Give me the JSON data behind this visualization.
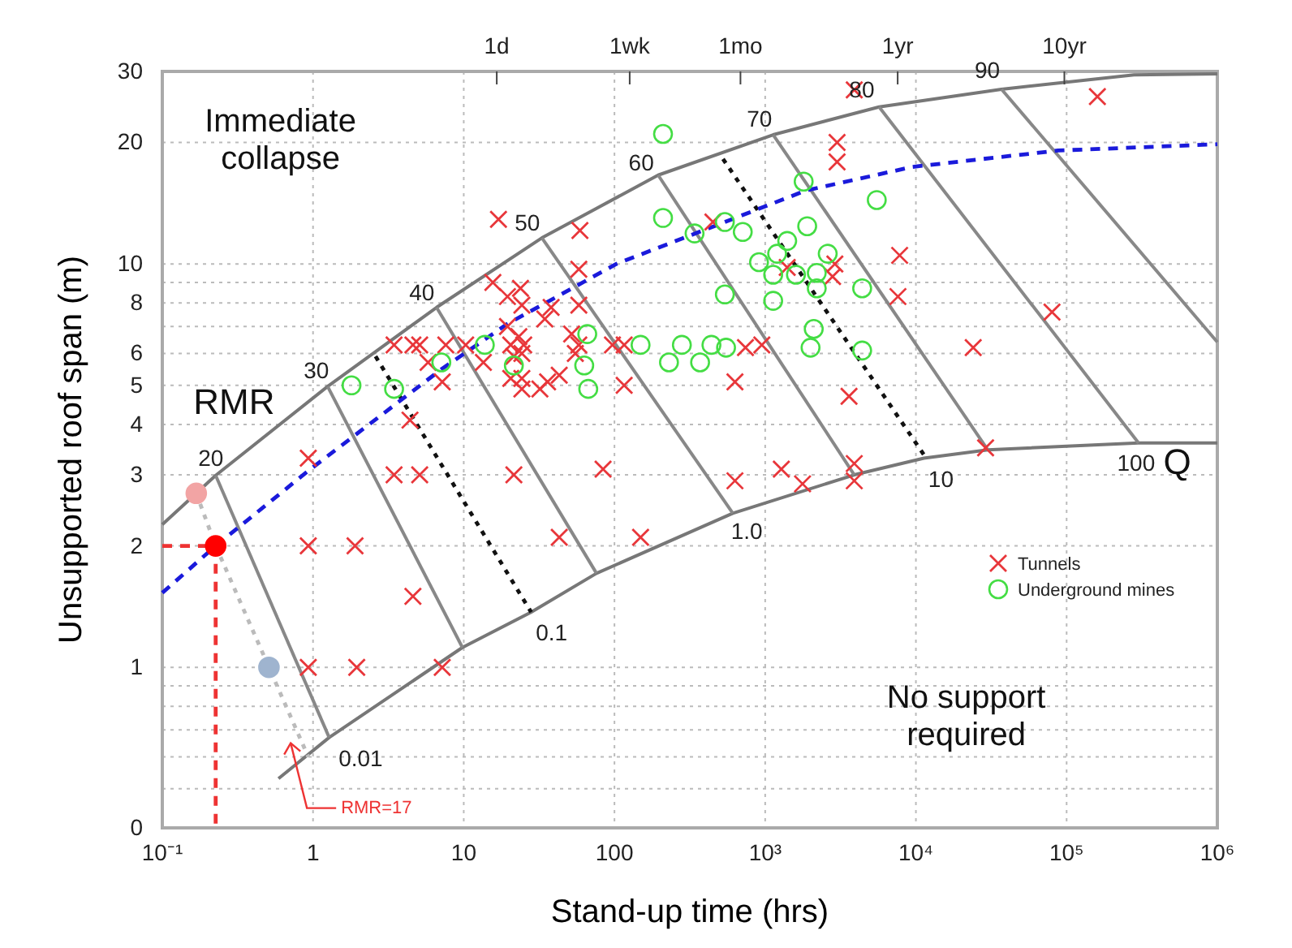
{
  "chart_data": {
    "type": "scatter",
    "xlabel": "Stand-up time (hrs)",
    "ylabel": "Unsupported roof span (m)",
    "log": "xy",
    "grid": true,
    "legend": "right",
    "xlim": [
      0.1,
      1000000
    ],
    "ylim": [
      0.4,
      30
    ],
    "xticks": [
      {
        "value": 0.1,
        "label": "10⁻¹"
      },
      1,
      10,
      100,
      {
        "value": 1000,
        "label": "10³"
      },
      {
        "value": 10000,
        "label": "10⁴"
      },
      {
        "value": 100000,
        "label": "10⁵"
      },
      {
        "value": 1000000,
        "label": "10⁶"
      }
    ],
    "yticks": [
      {
        "value": 0.4,
        "label": "0"
      },
      {
        "value": 0.5,
        "label": null
      },
      {
        "value": 0.6,
        "label": null
      },
      {
        "value": 0.7,
        "label": null
      },
      {
        "value": 0.8,
        "label": null
      },
      {
        "value": 0.9,
        "label": null
      },
      1,
      2,
      3,
      4,
      5,
      6,
      {
        "value": 7,
        "label": null
      },
      8,
      {
        "value": 9,
        "label": null
      },
      10,
      20,
      30
    ],
    "annotations": [
      "Immediate collapse",
      "No support required",
      "RMR",
      "Q",
      "20",
      "30",
      "40",
      "50",
      "60",
      "70",
      "80",
      "90",
      "0.01",
      "0.1",
      "1.0",
      "10",
      "100",
      "RMR=17",
      "1d",
      "1wk",
      "1mo",
      "1yr",
      "10yr"
    ],
    "series": [
      {
        "type": "line",
        "color": "#777777",
        "line_style": "solid",
        "x": [
          0.1,
          0.226,
          1.25,
          6.6,
          33,
          195,
          1130,
          5700,
          37000,
          280000,
          1000000
        ],
        "values": [
          2.26,
          2.99,
          4.97,
          7.8,
          11.6,
          16.6,
          20.9,
          24.5,
          27.1,
          29.4,
          29.6
        ]
      },
      {
        "type": "line",
        "color": "#777777",
        "line_style": "solid",
        "x": [
          0.59,
          1.28,
          9.8,
          28,
          76,
          610,
          3900,
          11300,
          30000,
          300000,
          1000000
        ],
        "values": [
          0.53,
          0.67,
          1.12,
          1.37,
          1.71,
          2.41,
          3.0,
          3.3,
          3.46,
          3.6,
          3.6
        ]
      },
      {
        "type": "line",
        "color": "#888888",
        "line_style": "solid",
        "x": [
          0.226,
          1.28
        ],
        "values": [
          2.99,
          0.67
        ]
      },
      {
        "type": "line",
        "color": "#888888",
        "line_style": "solid",
        "x": [
          1.25,
          9.8
        ],
        "values": [
          4.97,
          1.12
        ]
      },
      {
        "type": "line",
        "color": "#888888",
        "line_style": "solid",
        "x": [
          6.6,
          76
        ],
        "values": [
          7.8,
          1.71
        ]
      },
      {
        "type": "line",
        "color": "#888888",
        "line_style": "solid",
        "x": [
          33,
          610
        ],
        "values": [
          11.6,
          2.41
        ]
      },
      {
        "type": "line",
        "color": "#888888",
        "line_style": "solid",
        "x": [
          195,
          3900
        ],
        "values": [
          16.6,
          3.0
        ]
      },
      {
        "type": "line",
        "color": "#888888",
        "line_style": "solid",
        "x": [
          1130,
          30000
        ],
        "values": [
          20.9,
          3.46
        ]
      },
      {
        "type": "line",
        "color": "#888888",
        "line_style": "solid",
        "x": [
          5700,
          300000
        ],
        "values": [
          24.5,
          3.6
        ]
      },
      {
        "type": "line",
        "color": "#888888",
        "line_style": "solid",
        "x": [
          37000,
          1000000
        ],
        "values": [
          27.1,
          6.4
        ]
      },
      {
        "type": "line",
        "color": "#111111",
        "line_style": "dotted",
        "x": [
          2.6,
          28
        ],
        "values": [
          5.9,
          1.37
        ]
      },
      {
        "type": "line",
        "color": "#111111",
        "line_style": "dotted",
        "x": [
          525,
          11900
        ],
        "values": [
          18.2,
          3.27
        ]
      },
      {
        "type": "line",
        "color": "#1a1adb",
        "line_style": "dashed",
        "x": [
          0.1,
          0.226,
          0.93,
          7.2,
          19.5,
          103,
          540,
          1860,
          9500,
          88000,
          1000000
        ],
        "values": [
          1.53,
          2.0,
          3.07,
          5.5,
          7.1,
          10.0,
          12.7,
          15.2,
          17.4,
          19.1,
          19.8
        ]
      },
      {
        "type": "line",
        "color": "#bbbbbb",
        "line_style": "dotted",
        "x": [
          0.168,
          0.226,
          0.51,
          0.93
        ],
        "values": [
          2.7,
          2.0,
          1.0,
          0.6
        ]
      },
      {
        "type": "line",
        "color": "#ee3333",
        "line_style": "dashed",
        "x": [
          0.1,
          0.226,
          0.226
        ],
        "values": [
          2.0,
          2.0,
          0.4
        ]
      },
      {
        "name": "Tunnels",
        "color": "#e8363a",
        "marker": "cross",
        "x": [
          17,
          59,
          58,
          15.6,
          19.5,
          23.8,
          24.3,
          38,
          34.5,
          58,
          19.5,
          3.45,
          4.6,
          5.1,
          7.6,
          10.3,
          5.8,
          7.2,
          13.5,
          20.5,
          23.2,
          25,
          24.3,
          21.5,
          20.5,
          24.3,
          24.3,
          32,
          36,
          43,
          52,
          58,
          55,
          97,
          116,
          116,
          4.4,
          0.93,
          3.45,
          5.1,
          21.5,
          84,
          0.93,
          1.9,
          4.6,
          0.93,
          1.95,
          7.2,
          43,
          149,
          160000,
          3000,
          3000,
          450,
          7800,
          2900,
          2800,
          1400,
          7600,
          80000,
          24000,
          740,
          950,
          630,
          3600,
          29000,
          1280,
          1770,
          3900,
          3900,
          630,
          3900
        ],
        "values": [
          12.9,
          12.1,
          9.7,
          9.0,
          8.3,
          8.7,
          7.9,
          7.8,
          7.3,
          7.9,
          7.0,
          6.3,
          6.3,
          6.3,
          6.3,
          6.3,
          5.7,
          5.1,
          5.7,
          6.3,
          6.6,
          6.3,
          6.0,
          5.9,
          5.2,
          5.2,
          4.9,
          4.9,
          5.1,
          5.3,
          6.7,
          6.3,
          6.0,
          6.3,
          6.3,
          5.0,
          4.1,
          3.3,
          3.0,
          3.0,
          3.0,
          3.1,
          2.0,
          2.0,
          1.5,
          1.0,
          1.0,
          1.0,
          2.1,
          2.1,
          26,
          20,
          17.9,
          12.7,
          10.5,
          10.0,
          9.3,
          9.8,
          8.3,
          7.6,
          6.2,
          6.2,
          6.3,
          5.1,
          4.7,
          3.5,
          3.1,
          2.85,
          3.2,
          2.9,
          2.9,
          27
        ]
      },
      {
        "name": "Underground mines",
        "color": "#44dd44",
        "marker": "circle",
        "x": [
          1.8,
          3.45,
          7.1,
          13.8,
          21.5,
          66,
          63,
          67,
          149,
          210,
          210,
          340,
          540,
          710,
          1800,
          5500,
          1900,
          1400,
          1200,
          910,
          1130,
          1600,
          2200,
          2600,
          2200,
          4400,
          540,
          1130,
          2100,
          2000,
          4400,
          280,
          440,
          550,
          230,
          370
        ],
        "values": [
          5.0,
          4.9,
          5.7,
          6.3,
          5.6,
          6.7,
          5.6,
          4.9,
          6.3,
          21,
          13.0,
          11.9,
          12.7,
          12.0,
          16.0,
          14.4,
          12.4,
          11.4,
          10.6,
          10.1,
          9.4,
          9.4,
          9.5,
          10.6,
          8.7,
          8.7,
          8.4,
          8.1,
          6.9,
          6.2,
          6.1,
          6.3,
          6.3,
          6.2,
          5.7,
          5.7
        ]
      },
      {
        "color": "#f2a4a4",
        "marker": "circle",
        "x": [
          0.168
        ],
        "values": [
          2.7
        ]
      },
      {
        "color": "#ff0000",
        "marker": "circle",
        "x": [
          0.226
        ],
        "values": [
          2.0
        ]
      },
      {
        "color": "#9fb4cf",
        "marker": "circle",
        "x": [
          0.51
        ],
        "values": [
          1.0
        ]
      }
    ]
  }
}
